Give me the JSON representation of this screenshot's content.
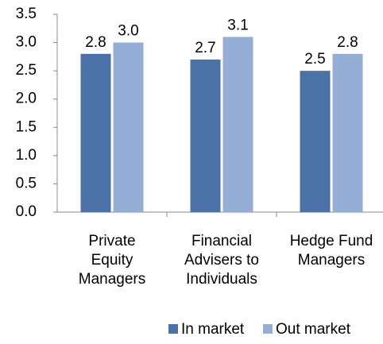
{
  "chart_data": {
    "type": "bar",
    "categories": [
      "Private\nEquity\nManagers",
      "Financial\nAdvisers to\nIndividuals",
      "Hedge Fund\nManagers"
    ],
    "series": [
      {
        "name": "In market",
        "color": "#4a72a8",
        "values": [
          2.8,
          2.7,
          2.5
        ],
        "value_labels": [
          "2.8",
          "2.7",
          "2.5"
        ]
      },
      {
        "name": "Out market",
        "color": "#94aed6",
        "values": [
          3.0,
          3.1,
          2.8
        ],
        "value_labels": [
          "3.0",
          "3.1",
          "2.8"
        ]
      }
    ],
    "ylim": [
      0,
      3.5
    ],
    "yticks": [
      {
        "value": 0,
        "label": "0.0"
      },
      0.5,
      {
        "value": 1,
        "label": "1.0"
      },
      1.5,
      {
        "value": 2,
        "label": "2.0"
      },
      2.5,
      {
        "value": 3,
        "label": "3.0"
      },
      3.5
    ],
    "legend": "bottom"
  }
}
